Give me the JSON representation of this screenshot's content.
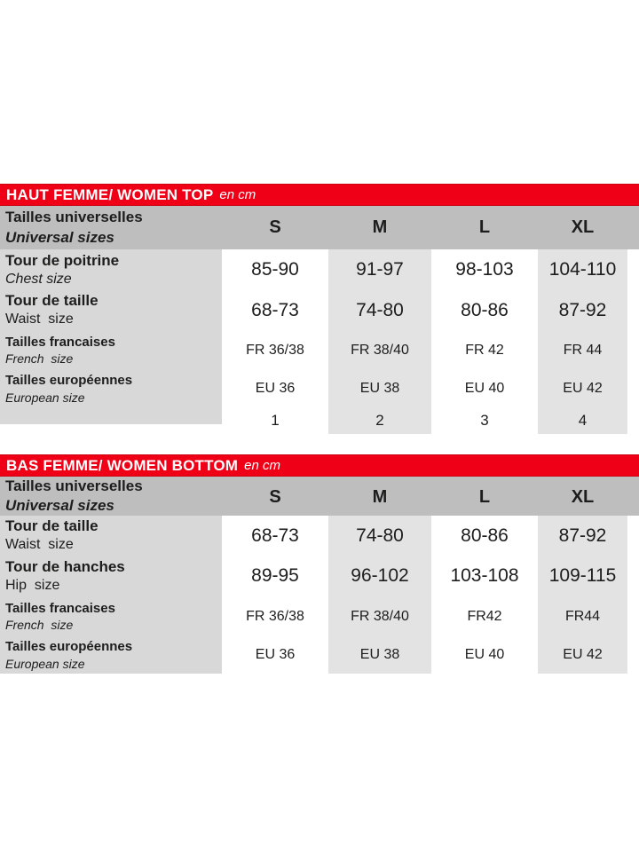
{
  "colors": {
    "red_bar": "#ef0016",
    "header_gray": "#bebebe",
    "label_gray": "#d8d8d8",
    "band_gray": "#e3e3e3",
    "band_white": "#ffffff",
    "text": "#1d1d1b",
    "underline": "#161616"
  },
  "size_columns": [
    "S",
    "M",
    "L",
    "XL"
  ],
  "tables": [
    {
      "id": "women-top",
      "title": "HAUT FEMME/ WOMEN TOP",
      "unit": "en cm",
      "header": {
        "fr": "Tailles universelles",
        "en": "Universal sizes",
        "underline": false
      },
      "rows": [
        {
          "fr": "Tour de poitrine",
          "en": "Chest size",
          "en_style": "italic",
          "size": "large",
          "values": [
            "85-90",
            "91-97",
            "98-103",
            "104-110"
          ]
        },
        {
          "fr": "Tour de taille",
          "en": "Waist  size",
          "en_style": "regular",
          "size": "large",
          "values": [
            "68-73",
            "74-80",
            "80-86",
            "87-92"
          ]
        },
        {
          "fr": "Tailles francaises",
          "en": "French  size",
          "en_style": "italic",
          "size": "small",
          "values": [
            "FR 36/38",
            "FR 38/40",
            "FR 42",
            "FR 44"
          ]
        },
        {
          "fr": "Tailles européennes",
          "en": "European size",
          "en_style": "italic",
          "size": "small",
          "values": [
            "EU 36",
            "EU 38",
            "EU 40",
            "EU 42"
          ]
        },
        {
          "fr": "",
          "en": "",
          "en_style": "regular",
          "size": "numbers",
          "values": [
            "1",
            "2",
            "3",
            "4"
          ]
        }
      ]
    },
    {
      "id": "women-bottom",
      "title": "BAS FEMME/ WOMEN BOTTOM",
      "unit": "en cm",
      "header": {
        "fr": "Tailles universelles",
        "en": "Universal sizes",
        "underline": true
      },
      "rows": [
        {
          "fr": "Tour de taille",
          "en": "Waist  size",
          "en_style": "regular",
          "size": "large",
          "values": [
            "68-73",
            "74-80",
            "80-86",
            "87-92"
          ]
        },
        {
          "fr": "Tour de hanches",
          "en": "Hip  size",
          "en_style": "regular",
          "size": "large",
          "values": [
            "89-95",
            "96-102",
            "103-108",
            "109-115"
          ]
        },
        {
          "fr": "Tailles francaises",
          "en": "French  size",
          "en_style": "italic",
          "size": "small",
          "values": [
            "FR 36/38",
            "FR 38/40",
            "FR42",
            "FR44"
          ]
        },
        {
          "fr": "Tailles européennes",
          "en": "European size",
          "en_style": "italic",
          "size": "small",
          "values": [
            "EU 36",
            "EU 38",
            "EU 40",
            "EU 42"
          ]
        }
      ]
    }
  ]
}
